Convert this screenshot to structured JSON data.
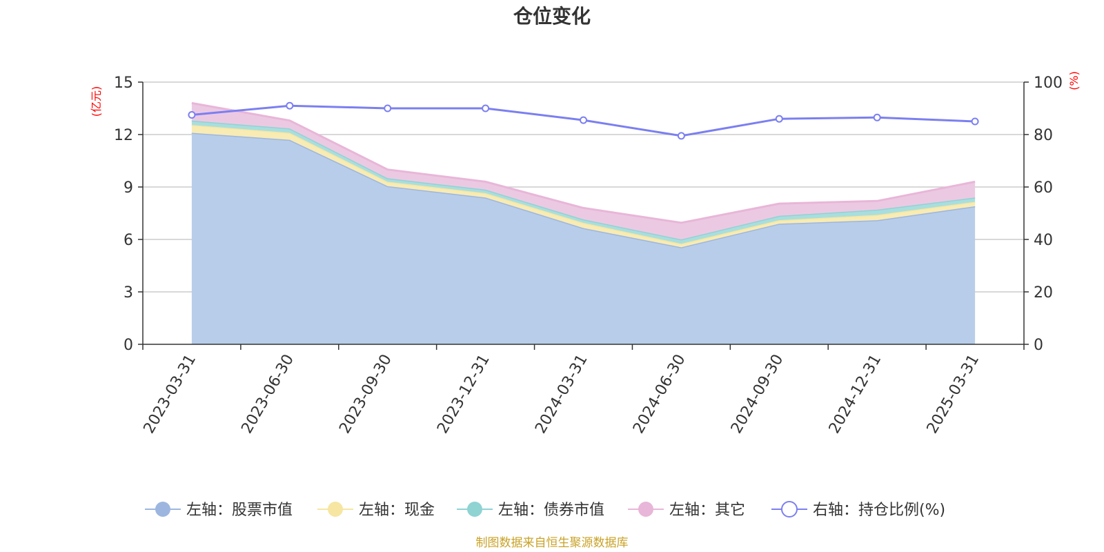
{
  "chart_data": {
    "type": "area",
    "title": "仓位变化",
    "categories": [
      "2023-03-31",
      "2023-06-30",
      "2023-09-30",
      "2023-12-31",
      "2024-03-31",
      "2024-06-30",
      "2024-09-30",
      "2024-12-31",
      "2025-03-31"
    ],
    "left_axis": {
      "unit": "(亿元)",
      "ylim": [
        0,
        15
      ],
      "ticks": [
        "0",
        "3",
        "6",
        "9",
        "12",
        "15"
      ]
    },
    "right_axis": {
      "unit": "(%)",
      "ylim": [
        0,
        100
      ],
      "ticks": [
        "0",
        "20",
        "40",
        "60",
        "80",
        "100"
      ]
    },
    "stacked": true,
    "series": [
      {
        "name": "左轴：股票市值",
        "axis": "left",
        "type": "area",
        "color": "#9db6e0",
        "fill": "#b8cde9",
        "values": [
          12.1,
          11.7,
          9.05,
          8.4,
          6.65,
          5.55,
          6.9,
          7.1,
          7.9
        ]
      },
      {
        "name": "左轴：现金",
        "axis": "left",
        "type": "area",
        "color": "#f6e6a2",
        "fill": "#f8ebb3",
        "values": [
          0.45,
          0.4,
          0.25,
          0.25,
          0.3,
          0.2,
          0.2,
          0.3,
          0.25
        ]
      },
      {
        "name": "左轴：债券市值",
        "axis": "left",
        "type": "area",
        "color": "#8fd3d3",
        "fill": "#a9dede",
        "values": [
          0.25,
          0.25,
          0.2,
          0.2,
          0.2,
          0.25,
          0.25,
          0.3,
          0.25
        ]
      },
      {
        "name": "左轴：其它",
        "axis": "left",
        "type": "area",
        "color": "#e8b6d8",
        "fill": "#ecc9e3",
        "values": [
          1.0,
          0.45,
          0.5,
          0.45,
          0.65,
          0.95,
          0.7,
          0.5,
          0.9
        ]
      },
      {
        "name": "右轴：持仓比例(%)",
        "axis": "right",
        "type": "line",
        "color": "#7b7ff0",
        "values": [
          87.5,
          91,
          90,
          90,
          85.5,
          79.5,
          86,
          86.5,
          85
        ]
      }
    ],
    "grid": true,
    "legend_position": "bottom"
  },
  "footer": "制图数据来自恒生聚源数据库"
}
